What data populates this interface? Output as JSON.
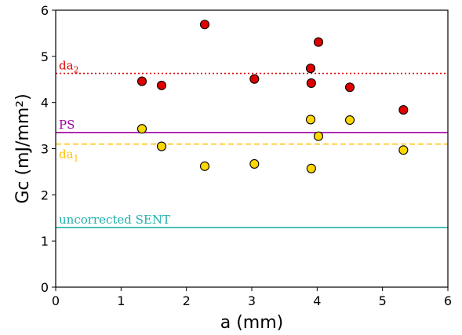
{
  "chart_data": {
    "type": "scatter",
    "title": "",
    "xlabel": "a (mm)",
    "ylabel": "Gc (mJ/mm²)",
    "xlim": [
      0,
      6
    ],
    "ylim": [
      0,
      6
    ],
    "xticks": [
      "0",
      "1",
      "2",
      "3",
      "4",
      "5",
      "6"
    ],
    "yticks": [
      "0",
      "1",
      "2",
      "3",
      "4",
      "5",
      "6"
    ],
    "grid": false,
    "legend": "none",
    "series": [
      {
        "color": "#e00000",
        "marker": "circle",
        "points": [
          {
            "x": 1.32,
            "y": 4.46
          },
          {
            "x": 1.62,
            "y": 4.37
          },
          {
            "x": 2.28,
            "y": 5.69
          },
          {
            "x": 3.04,
            "y": 4.51
          },
          {
            "x": 3.9,
            "y": 4.74
          },
          {
            "x": 3.91,
            "y": 4.42
          },
          {
            "x": 4.02,
            "y": 5.31
          },
          {
            "x": 4.5,
            "y": 4.33
          },
          {
            "x": 5.32,
            "y": 3.84
          }
        ]
      },
      {
        "color": "#ffd700",
        "marker": "circle",
        "points": [
          {
            "x": 1.32,
            "y": 3.43
          },
          {
            "x": 1.62,
            "y": 3.05
          },
          {
            "x": 2.28,
            "y": 2.62
          },
          {
            "x": 3.04,
            "y": 2.67
          },
          {
            "x": 3.9,
            "y": 3.63
          },
          {
            "x": 3.91,
            "y": 2.57
          },
          {
            "x": 4.02,
            "y": 3.27
          },
          {
            "x": 4.5,
            "y": 3.62
          },
          {
            "x": 5.32,
            "y": 2.97
          }
        ]
      }
    ],
    "reference_lines": [
      {
        "label": "da",
        "subscript": "2",
        "y": 4.63,
        "color": "#e00000",
        "style": "dotted"
      },
      {
        "label": "PS",
        "subscript": "",
        "y": 3.35,
        "color": "#a000a0",
        "style": "solid"
      },
      {
        "label": "da",
        "subscript": "1",
        "y": 3.1,
        "color": "#ffc000",
        "style": "dashed"
      },
      {
        "label": "uncorrected SENT",
        "subscript": "",
        "y": 1.29,
        "color": "#20b2aa",
        "style": "solid"
      }
    ]
  }
}
